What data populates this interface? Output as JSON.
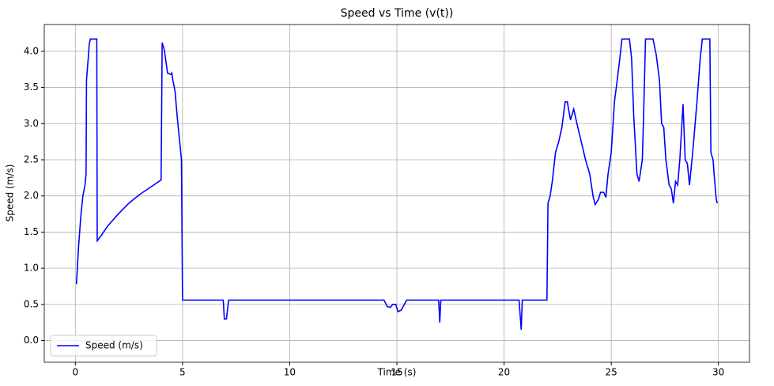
{
  "chart_data": {
    "type": "line",
    "title": "Speed vs Time (v(t))",
    "xlabel": "Time (s)",
    "ylabel": "Speed (m/s)",
    "x": [
      0.05,
      0.15,
      0.25,
      0.35,
      0.45,
      0.5,
      0.52,
      0.6,
      0.65,
      0.7,
      1.0,
      1.02,
      1.2,
      1.5,
      2.0,
      2.5,
      3.0,
      3.5,
      4.0,
      4.05,
      4.15,
      4.3,
      4.45,
      4.5,
      4.55,
      4.65,
      4.75,
      4.85,
      4.95,
      5.0,
      6.9,
      6.95,
      7.05,
      7.15,
      14.4,
      14.55,
      14.7,
      14.8,
      14.95,
      15.05,
      15.2,
      15.35,
      15.45,
      16.95,
      17.0,
      17.05,
      20.7,
      20.8,
      20.85,
      22.0,
      22.05,
      22.15,
      22.25,
      22.4,
      22.55,
      22.7,
      22.85,
      22.95,
      23.1,
      23.25,
      23.4,
      23.6,
      23.8,
      24.0,
      24.15,
      24.25,
      24.4,
      24.5,
      24.65,
      24.75,
      24.85,
      25.0,
      25.15,
      25.3,
      25.4,
      25.5,
      25.85,
      25.95,
      26.05,
      26.2,
      26.3,
      26.45,
      26.5,
      26.6,
      26.95,
      27.1,
      27.25,
      27.35,
      27.45,
      27.55,
      27.7,
      27.8,
      27.9,
      28.0,
      28.1,
      28.2,
      28.35,
      28.45,
      28.55,
      28.65,
      28.8,
      29.0,
      29.15,
      29.25,
      29.6,
      29.65,
      29.75,
      29.8,
      29.9,
      29.95
    ],
    "series": [
      {
        "name": "Speed (m/s)",
        "color": "#0000ff",
        "values": [
          0.78,
          1.3,
          1.7,
          2.0,
          2.15,
          2.3,
          3.6,
          3.9,
          4.1,
          4.17,
          4.17,
          1.38,
          1.45,
          1.58,
          1.75,
          1.9,
          2.02,
          2.12,
          2.22,
          4.12,
          4.02,
          3.7,
          3.68,
          3.7,
          3.6,
          3.45,
          3.1,
          2.8,
          2.5,
          0.56,
          0.56,
          0.3,
          0.3,
          0.56,
          0.56,
          0.47,
          0.46,
          0.5,
          0.5,
          0.4,
          0.42,
          0.5,
          0.56,
          0.56,
          0.25,
          0.56,
          0.56,
          0.15,
          0.56,
          0.56,
          1.9,
          2.0,
          2.2,
          2.6,
          2.75,
          2.95,
          3.3,
          3.3,
          3.05,
          3.2,
          3.0,
          2.75,
          2.5,
          2.3,
          2.0,
          1.88,
          1.95,
          2.05,
          2.05,
          1.98,
          2.3,
          2.6,
          3.3,
          3.65,
          3.9,
          4.17,
          4.17,
          3.9,
          3.1,
          2.3,
          2.2,
          2.5,
          3.0,
          4.17,
          4.17,
          3.95,
          3.6,
          3.0,
          2.95,
          2.5,
          2.15,
          2.1,
          1.9,
          2.2,
          2.15,
          2.5,
          3.27,
          2.5,
          2.45,
          2.15,
          2.6,
          3.3,
          3.9,
          4.17,
          4.17,
          2.6,
          2.5,
          2.3,
          1.95,
          1.9
        ]
      }
    ],
    "xlim": [
      -1.45,
      31.45
    ],
    "ylim": [
      -0.3,
      4.37
    ],
    "xticks": [
      0,
      5,
      10,
      15,
      20,
      25,
      30
    ],
    "yticks": [
      {
        "value": 0,
        "label": "0.0"
      },
      {
        "value": 0.5,
        "label": "0.5"
      },
      {
        "value": 1,
        "label": "1.0"
      },
      {
        "value": 1.5,
        "label": "1.5"
      },
      {
        "value": 2,
        "label": "2.0"
      },
      {
        "value": 2.5,
        "label": "2.5"
      },
      {
        "value": 3,
        "label": "3.0"
      },
      {
        "value": 3.5,
        "label": "3.5"
      },
      {
        "value": 4,
        "label": "4.0"
      }
    ],
    "grid": true,
    "legend": "lower left"
  }
}
